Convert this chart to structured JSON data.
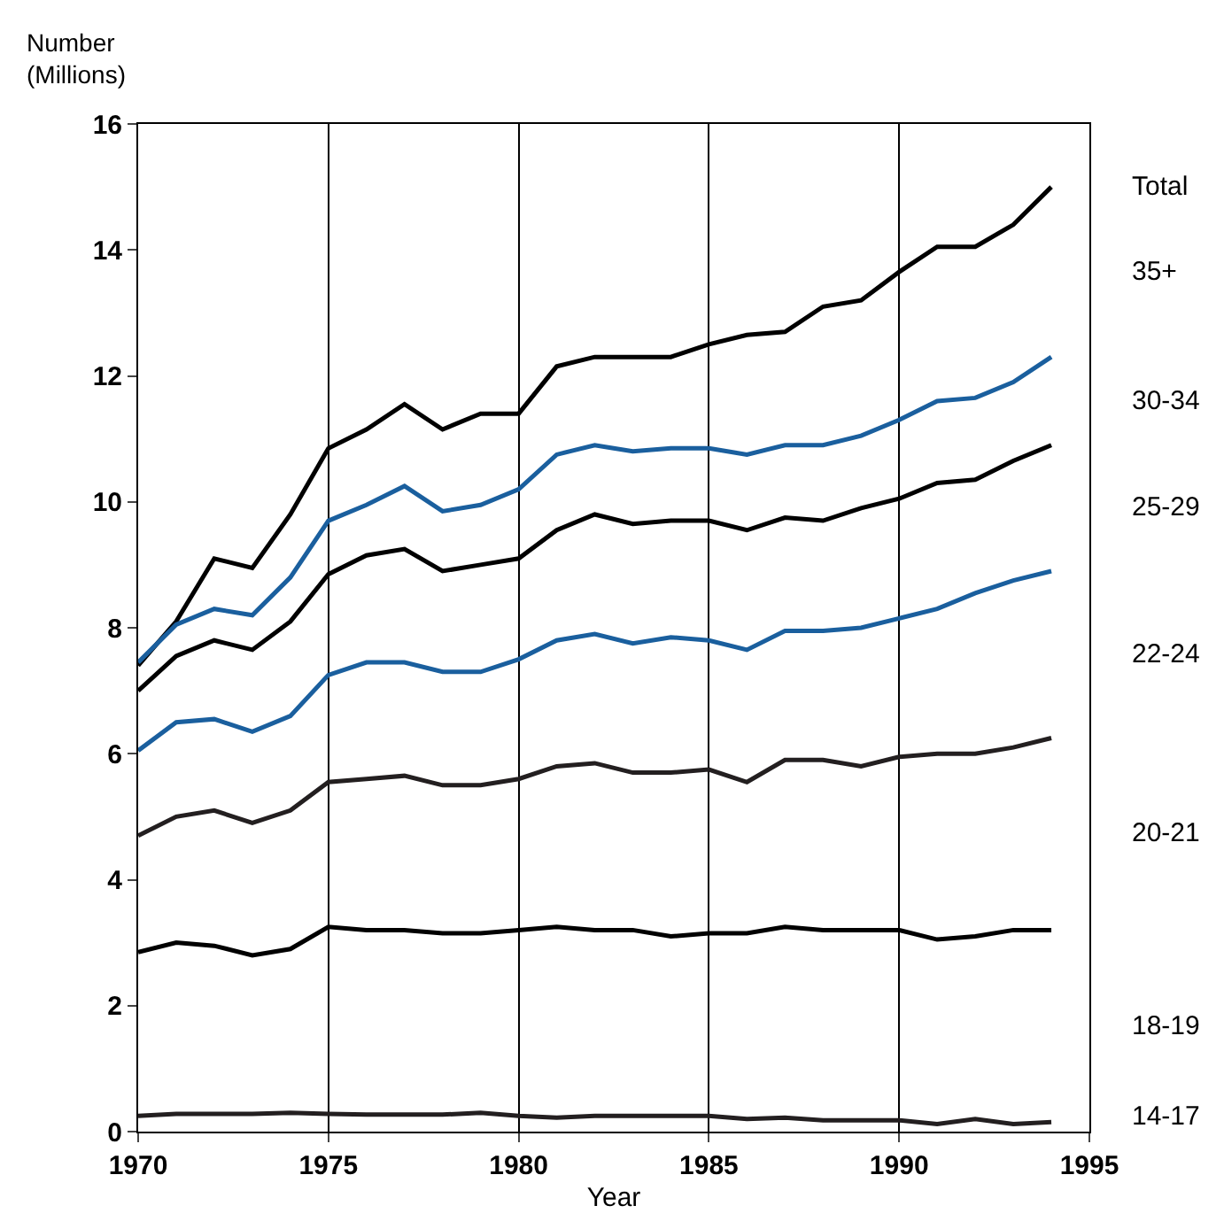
{
  "chart_data": {
    "type": "line",
    "xlabel": "Year",
    "ylabel": "Number\n(Millions)",
    "x": [
      1970,
      1971,
      1972,
      1973,
      1974,
      1975,
      1976,
      1977,
      1978,
      1979,
      1980,
      1981,
      1982,
      1983,
      1984,
      1985,
      1986,
      1987,
      1988,
      1989,
      1990,
      1991,
      1992,
      1993,
      1994
    ],
    "series": [
      {
        "color": "#000000",
        "values": [
          7.4,
          8.1,
          9.1,
          8.95,
          9.8,
          10.85,
          11.15,
          11.55,
          11.15,
          11.4,
          11.4,
          12.15,
          12.3,
          12.3,
          12.3,
          12.5,
          12.65,
          12.7,
          13.1,
          13.2,
          13.65,
          14.05,
          14.05,
          14.4,
          15.0
        ]
      },
      {
        "color": "#1a5f9e",
        "values": [
          7.45,
          8.05,
          8.3,
          8.2,
          8.8,
          9.7,
          9.95,
          10.25,
          9.85,
          9.95,
          10.2,
          10.75,
          10.9,
          10.8,
          10.85,
          10.85,
          10.75,
          10.9,
          10.9,
          11.05,
          11.3,
          11.6,
          11.65,
          11.9,
          12.3
        ]
      },
      {
        "color": "#000000",
        "values": [
          7.0,
          7.55,
          7.8,
          7.65,
          8.1,
          8.85,
          9.15,
          9.25,
          8.9,
          9.0,
          9.1,
          9.55,
          9.8,
          9.65,
          9.7,
          9.7,
          9.55,
          9.75,
          9.7,
          9.9,
          10.05,
          10.3,
          10.35,
          10.65,
          10.9
        ]
      },
      {
        "color": "#1a5f9e",
        "values": [
          6.05,
          6.5,
          6.55,
          6.35,
          6.6,
          7.25,
          7.45,
          7.45,
          7.3,
          7.3,
          7.5,
          7.8,
          7.9,
          7.75,
          7.85,
          7.8,
          7.65,
          7.95,
          7.95,
          8.0,
          8.15,
          8.3,
          8.55,
          8.75,
          8.9
        ]
      },
      {
        "color": "#231f20",
        "values": [
          4.7,
          5.0,
          5.1,
          4.9,
          5.1,
          5.55,
          5.6,
          5.65,
          5.5,
          5.5,
          5.6,
          5.8,
          5.85,
          5.7,
          5.7,
          5.75,
          5.55,
          5.9,
          5.9,
          5.8,
          5.95,
          6.0,
          6.0,
          6.1,
          6.25
        ]
      },
      {
        "color": "#000000",
        "values": [
          2.85,
          3.0,
          2.95,
          2.8,
          2.9,
          3.25,
          3.2,
          3.2,
          3.15,
          3.15,
          3.2,
          3.25,
          3.2,
          3.2,
          3.1,
          3.15,
          3.15,
          3.25,
          3.2,
          3.2,
          3.2,
          3.05,
          3.1,
          3.2,
          3.2
        ]
      },
      {
        "color": "#231f20",
        "values": [
          0.25,
          0.28,
          0.28,
          0.28,
          0.3,
          0.28,
          0.27,
          0.27,
          0.27,
          0.3,
          0.25,
          0.22,
          0.25,
          0.25,
          0.25,
          0.25,
          0.2,
          0.22,
          0.18,
          0.18,
          0.18,
          0.12,
          0.2,
          0.12,
          0.15
        ]
      }
    ],
    "annotations": [
      "Total",
      "35+",
      "30-34",
      "25-29",
      "22-24",
      "20-21",
      "18-19",
      "14-17"
    ],
    "xlim": [
      1970,
      1995
    ],
    "xticks": [
      1970,
      1975,
      1980,
      1985,
      1990,
      1995
    ],
    "ylim": [
      0,
      16
    ],
    "yticks": [
      0,
      2,
      4,
      6,
      8,
      10,
      12,
      14,
      16
    ],
    "grid": "x",
    "marker": "none",
    "line_style": "solid"
  }
}
